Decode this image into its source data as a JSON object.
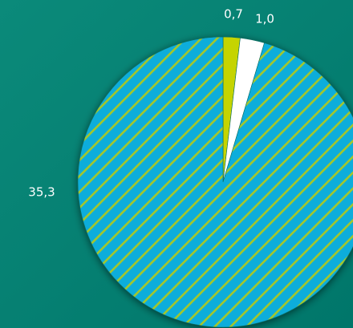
{
  "chart_data": {
    "type": "pie",
    "values": [
      0.7,
      1.0,
      35.3
    ],
    "value_labels": [
      "0,7",
      "1,0",
      "35,3"
    ],
    "colors": [
      "#c5d400",
      "#ffffff",
      "#10addb"
    ],
    "hatched": [
      false,
      false,
      true
    ],
    "hatch_color": "#a4c72a"
  }
}
